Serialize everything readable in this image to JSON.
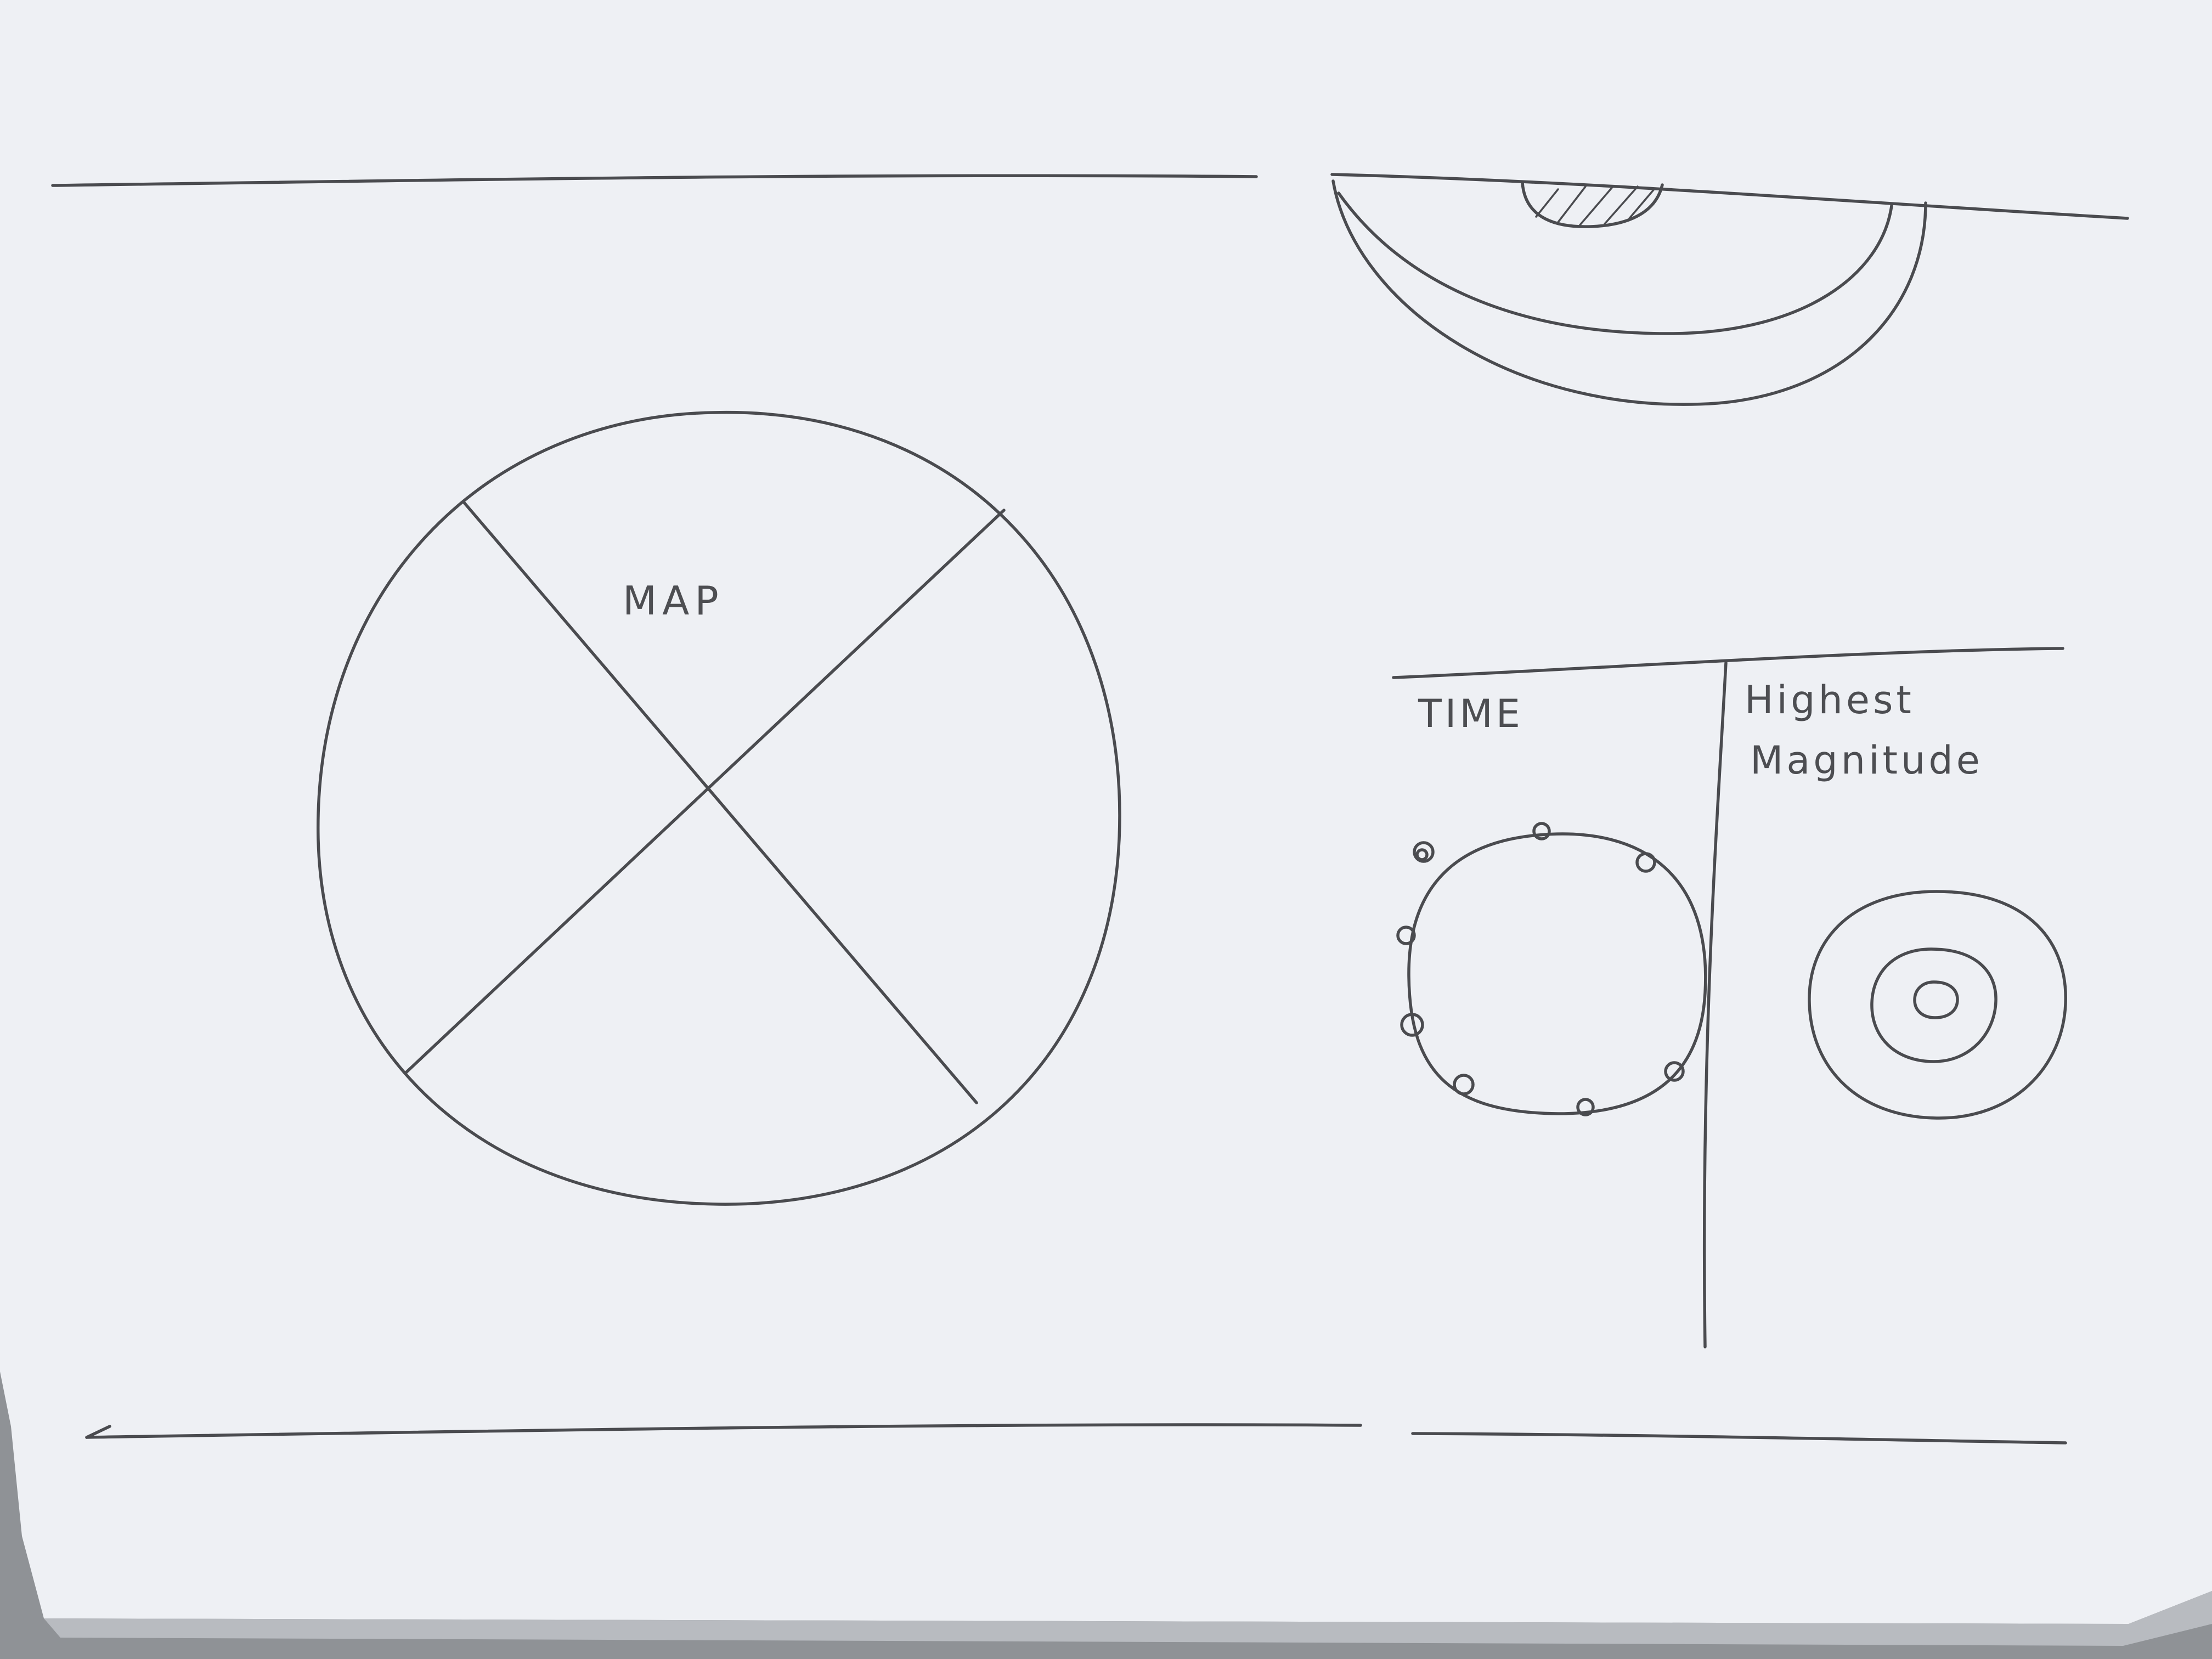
{
  "sketch": {
    "map_label": "MAP",
    "time_label": "TIME",
    "magnitude_label_line1": "Highest",
    "magnitude_label_line2": "Magnitude"
  },
  "colors": {
    "paper": "#eef0f4",
    "ink": "#4a4b4f",
    "table": "#8f9296"
  }
}
